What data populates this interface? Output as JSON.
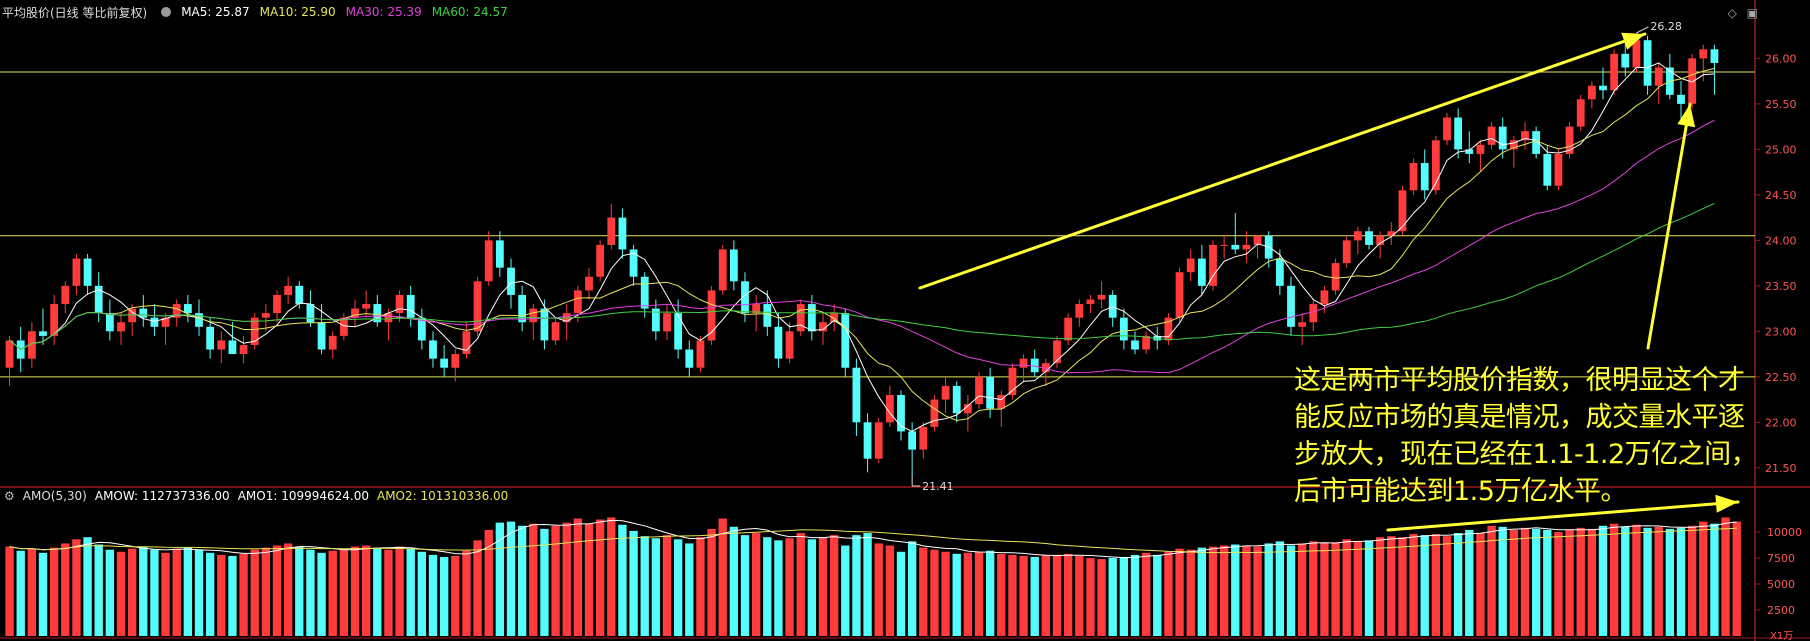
{
  "header": {
    "title": "平均股价(日线 等比前复权)",
    "ma5": "MA5: 25.87",
    "ma10": "MA10: 25.90",
    "ma30": "MA30: 25.39",
    "ma60": "MA60: 24.57"
  },
  "volume_header": {
    "title": "AMO(5,30)",
    "amow": "AMOW: 112737336.00",
    "amo1": "AMO1: 109994624.00",
    "amo2": "AMO2: 101310336.00"
  },
  "price_axis": [
    "26.00",
    "25.50",
    "25.00",
    "24.50",
    "24.00",
    "23.50",
    "23.00",
    "22.50",
    "22.00",
    "21.50"
  ],
  "volume_axis": [
    "10000",
    "7500",
    "5000",
    "2500"
  ],
  "volume_unit": "X1万",
  "price_high_label": "26.28",
  "price_low_label": "21.41",
  "annotation": [
    "这是两市平均股价指数，很明显这个才",
    "能反应市场的真是情况，成交量水平逐",
    "步放大，现在已经在1.1-1.2万亿之间，",
    "后市可能达到1.5万亿水平。"
  ],
  "colors": {
    "up": "#ff3b3b",
    "down": "#54fcfc",
    "ma5": "#ffffff",
    "ma10": "#e6e65a",
    "ma30": "#e040e0",
    "ma60": "#40d040",
    "annotation": "#ffff33",
    "frame": "#9b1b1b",
    "level_line": "#e6e65a"
  },
  "chart_data": [
    {
      "type": "candlestick",
      "title": "平均股价(日线 等比前复权)",
      "ylim": [
        21.3,
        26.4
      ],
      "y_ticks": [
        21.5,
        22.0,
        22.5,
        23.0,
        23.5,
        24.0,
        24.5,
        25.0,
        25.5,
        26.0
      ],
      "horizontal_levels": [
        25.85,
        24.05,
        22.5
      ],
      "high_label": 26.28,
      "low_label": 21.41,
      "ma_last": {
        "MA5": 25.87,
        "MA10": 25.9,
        "MA30": 25.39,
        "MA60": 24.57
      },
      "ohlc": [
        [
          22.6,
          22.95,
          22.4,
          22.9
        ],
        [
          22.9,
          23.05,
          22.55,
          22.7
        ],
        [
          22.7,
          23.1,
          22.6,
          23.0
        ],
        [
          23.0,
          23.25,
          22.85,
          22.95
        ],
        [
          22.95,
          23.4,
          22.85,
          23.3
        ],
        [
          23.3,
          23.55,
          23.2,
          23.5
        ],
        [
          23.5,
          23.85,
          23.4,
          23.8
        ],
        [
          23.8,
          23.85,
          23.4,
          23.5
        ],
        [
          23.5,
          23.65,
          23.1,
          23.2
        ],
        [
          23.2,
          23.35,
          22.9,
          23.0
        ],
        [
          23.0,
          23.2,
          22.85,
          23.1
        ],
        [
          23.1,
          23.3,
          22.95,
          23.25
        ],
        [
          23.25,
          23.4,
          23.05,
          23.15
        ],
        [
          23.15,
          23.3,
          22.95,
          23.05
        ],
        [
          23.05,
          23.2,
          22.85,
          23.15
        ],
        [
          23.15,
          23.35,
          23.05,
          23.3
        ],
        [
          23.3,
          23.4,
          23.1,
          23.2
        ],
        [
          23.2,
          23.35,
          22.95,
          23.05
        ],
        [
          23.05,
          23.15,
          22.7,
          22.8
        ],
        [
          22.8,
          23.0,
          22.65,
          22.9
        ],
        [
          22.9,
          23.1,
          22.75,
          22.75
        ],
        [
          22.75,
          22.95,
          22.65,
          22.85
        ],
        [
          22.85,
          23.2,
          22.8,
          23.15
        ],
        [
          23.15,
          23.3,
          23.0,
          23.2
        ],
        [
          23.2,
          23.45,
          23.1,
          23.4
        ],
        [
          23.4,
          23.6,
          23.3,
          23.5
        ],
        [
          23.5,
          23.55,
          23.25,
          23.3
        ],
        [
          23.3,
          23.45,
          23.05,
          23.1
        ],
        [
          23.1,
          23.3,
          22.75,
          22.8
        ],
        [
          22.8,
          23.0,
          22.7,
          22.95
        ],
        [
          22.95,
          23.2,
          22.9,
          23.15
        ],
        [
          23.15,
          23.35,
          23.05,
          23.25
        ],
        [
          23.25,
          23.45,
          23.15,
          23.3
        ],
        [
          23.3,
          23.4,
          23.05,
          23.1
        ],
        [
          23.1,
          23.25,
          22.9,
          23.2
        ],
        [
          23.2,
          23.45,
          23.1,
          23.4
        ],
        [
          23.4,
          23.5,
          23.05,
          23.15
        ],
        [
          23.15,
          23.25,
          22.8,
          22.9
        ],
        [
          22.9,
          23.0,
          22.6,
          22.7
        ],
        [
          22.7,
          22.85,
          22.5,
          22.6
        ],
        [
          22.6,
          22.8,
          22.45,
          22.75
        ],
        [
          22.75,
          23.1,
          22.7,
          23.0
        ],
        [
          23.0,
          23.6,
          22.95,
          23.55
        ],
        [
          23.55,
          24.1,
          23.5,
          24.0
        ],
        [
          24.0,
          24.1,
          23.6,
          23.7
        ],
        [
          23.7,
          23.8,
          23.25,
          23.4
        ],
        [
          23.4,
          23.5,
          23.0,
          23.1
        ],
        [
          23.1,
          23.3,
          22.9,
          23.25
        ],
        [
          23.25,
          23.35,
          22.8,
          22.9
        ],
        [
          22.9,
          23.15,
          22.85,
          23.1
        ],
        [
          23.1,
          23.3,
          22.9,
          23.2
        ],
        [
          23.2,
          23.5,
          23.1,
          23.45
        ],
        [
          23.45,
          23.7,
          23.35,
          23.6
        ],
        [
          23.6,
          24.0,
          23.55,
          23.95
        ],
        [
          23.95,
          24.4,
          23.9,
          24.25
        ],
        [
          24.25,
          24.35,
          23.8,
          23.9
        ],
        [
          23.9,
          23.95,
          23.5,
          23.6
        ],
        [
          23.6,
          23.65,
          23.15,
          23.25
        ],
        [
          23.25,
          23.35,
          22.9,
          23.0
        ],
        [
          23.0,
          23.3,
          22.9,
          23.2
        ],
        [
          23.2,
          23.35,
          22.7,
          22.8
        ],
        [
          22.8,
          22.9,
          22.5,
          22.6
        ],
        [
          22.6,
          22.95,
          22.55,
          22.9
        ],
        [
          22.9,
          23.5,
          22.85,
          23.45
        ],
        [
          23.45,
          23.95,
          23.4,
          23.9
        ],
        [
          23.9,
          24.0,
          23.45,
          23.55
        ],
        [
          23.55,
          23.65,
          23.1,
          23.2
        ],
        [
          23.2,
          23.4,
          23.0,
          23.3
        ],
        [
          23.3,
          23.45,
          22.95,
          23.05
        ],
        [
          23.05,
          23.2,
          22.6,
          22.7
        ],
        [
          22.7,
          23.1,
          22.65,
          23.0
        ],
        [
          23.0,
          23.35,
          22.95,
          23.3
        ],
        [
          23.3,
          23.4,
          22.9,
          23.0
        ],
        [
          23.0,
          23.2,
          22.85,
          23.1
        ],
        [
          23.1,
          23.3,
          23.0,
          23.2
        ],
        [
          23.2,
          23.25,
          22.5,
          22.6
        ],
        [
          22.6,
          22.7,
          21.85,
          22.0
        ],
        [
          22.0,
          22.1,
          21.45,
          21.6
        ],
        [
          21.6,
          22.05,
          21.55,
          22.0
        ],
        [
          22.0,
          22.4,
          21.95,
          22.3
        ],
        [
          22.3,
          22.35,
          21.8,
          21.9
        ],
        [
          21.9,
          22.0,
          21.41,
          21.7
        ],
        [
          21.7,
          22.0,
          21.6,
          21.95
        ],
        [
          21.95,
          22.3,
          21.9,
          22.25
        ],
        [
          22.25,
          22.5,
          22.1,
          22.4
        ],
        [
          22.4,
          22.45,
          22.0,
          22.1
        ],
        [
          22.1,
          22.3,
          21.9,
          22.2
        ],
        [
          22.2,
          22.55,
          22.15,
          22.5
        ],
        [
          22.5,
          22.6,
          22.05,
          22.15
        ],
        [
          22.15,
          22.35,
          21.95,
          22.3
        ],
        [
          22.3,
          22.65,
          22.25,
          22.6
        ],
        [
          22.6,
          22.75,
          22.45,
          22.7
        ],
        [
          22.7,
          22.8,
          22.5,
          22.55
        ],
        [
          22.55,
          22.7,
          22.4,
          22.65
        ],
        [
          22.65,
          22.95,
          22.6,
          22.9
        ],
        [
          22.9,
          23.2,
          22.85,
          23.15
        ],
        [
          23.15,
          23.35,
          23.05,
          23.3
        ],
        [
          23.3,
          23.4,
          23.2,
          23.35
        ],
        [
          23.35,
          23.55,
          23.25,
          23.4
        ],
        [
          23.4,
          23.45,
          23.05,
          23.15
        ],
        [
          23.15,
          23.25,
          22.8,
          22.9
        ],
        [
          22.9,
          23.0,
          22.75,
          22.8
        ],
        [
          22.8,
          23.0,
          22.75,
          22.95
        ],
        [
          22.95,
          23.05,
          22.8,
          22.9
        ],
        [
          22.9,
          23.2,
          22.85,
          23.15
        ],
        [
          23.15,
          23.7,
          23.1,
          23.65
        ],
        [
          23.65,
          23.9,
          23.55,
          23.8
        ],
        [
          23.8,
          23.95,
          23.4,
          23.5
        ],
        [
          23.5,
          24.0,
          23.45,
          23.95
        ],
        [
          23.95,
          24.05,
          23.8,
          23.95
        ],
        [
          23.95,
          24.3,
          23.85,
          23.9
        ],
        [
          23.9,
          24.1,
          23.75,
          23.95
        ],
        [
          23.95,
          24.05,
          23.8,
          24.05
        ],
        [
          24.05,
          24.1,
          23.7,
          23.8
        ],
        [
          23.8,
          23.9,
          23.4,
          23.5
        ],
        [
          23.5,
          23.6,
          22.95,
          23.05
        ],
        [
          23.05,
          23.2,
          22.85,
          23.1
        ],
        [
          23.1,
          23.35,
          23.0,
          23.3
        ],
        [
          23.3,
          23.5,
          23.2,
          23.45
        ],
        [
          23.45,
          23.8,
          23.4,
          23.75
        ],
        [
          23.75,
          24.05,
          23.7,
          24.0
        ],
        [
          24.0,
          24.15,
          23.85,
          24.1
        ],
        [
          24.1,
          24.15,
          23.9,
          23.95
        ],
        [
          23.95,
          24.1,
          23.8,
          24.05
        ],
        [
          24.05,
          24.2,
          23.95,
          24.1
        ],
        [
          24.1,
          24.6,
          24.05,
          24.55
        ],
        [
          24.55,
          24.9,
          24.5,
          24.85
        ],
        [
          24.85,
          25.0,
          24.45,
          24.55
        ],
        [
          24.55,
          25.15,
          24.5,
          25.1
        ],
        [
          25.1,
          25.4,
          25.05,
          25.35
        ],
        [
          25.35,
          25.45,
          24.9,
          25.0
        ],
        [
          25.0,
          25.2,
          24.85,
          24.95
        ],
        [
          24.95,
          25.1,
          24.75,
          25.05
        ],
        [
          25.05,
          25.3,
          25.0,
          25.25
        ],
        [
          25.25,
          25.35,
          24.9,
          25.0
        ],
        [
          25.0,
          25.15,
          24.8,
          25.1
        ],
        [
          25.1,
          25.3,
          25.0,
          25.2
        ],
        [
          25.2,
          25.25,
          24.9,
          24.95
        ],
        [
          24.95,
          25.05,
          24.55,
          24.6
        ],
        [
          24.6,
          25.0,
          24.55,
          24.95
        ],
        [
          24.95,
          25.3,
          24.9,
          25.25
        ],
        [
          25.25,
          25.6,
          25.2,
          25.55
        ],
        [
          25.55,
          25.75,
          25.45,
          25.7
        ],
        [
          25.7,
          25.9,
          25.55,
          25.65
        ],
        [
          25.65,
          26.1,
          25.6,
          26.05
        ],
        [
          26.05,
          26.2,
          25.8,
          25.9
        ],
        [
          25.9,
          26.28,
          25.85,
          26.2
        ],
        [
          26.2,
          26.25,
          25.6,
          25.7
        ],
        [
          25.7,
          25.95,
          25.5,
          25.9
        ],
        [
          25.9,
          26.05,
          25.55,
          25.6
        ],
        [
          25.6,
          25.75,
          25.3,
          25.5
        ],
        [
          25.5,
          26.05,
          25.45,
          26.0
        ],
        [
          26.0,
          26.15,
          25.75,
          26.1
        ],
        [
          26.1,
          26.15,
          25.6,
          25.95
        ]
      ]
    },
    {
      "type": "bar",
      "title": "AMO(5,30)",
      "ylim": [
        0,
        12500
      ],
      "y_ticks": [
        2500,
        5000,
        7500,
        10000
      ],
      "unit": "X1万",
      "series_last": {
        "AMOW": 112737336.0,
        "AMO1": 109994624.0,
        "AMO2": 101310336.0
      },
      "values": [
        8600,
        8200,
        8400,
        8000,
        8500,
        8900,
        9300,
        9500,
        8800,
        8300,
        8100,
        8400,
        8600,
        8300,
        8000,
        8400,
        8500,
        8300,
        8000,
        7800,
        7700,
        7900,
        8300,
        8500,
        8700,
        8900,
        8600,
        8300,
        8000,
        8200,
        8400,
        8600,
        8700,
        8400,
        8300,
        8600,
        8400,
        8100,
        7800,
        7600,
        7700,
        8200,
        9200,
        10200,
        10900,
        11000,
        10600,
        10800,
        10300,
        10600,
        10900,
        11300,
        10800,
        11200,
        11400,
        10700,
        10100,
        9600,
        9400,
        9700,
        9300,
        8900,
        9500,
        10300,
        11300,
        10500,
        9700,
        9900,
        9500,
        9200,
        9400,
        9900,
        9300,
        9500,
        9700,
        8700,
        9700,
        9900,
        8900,
        8700,
        8100,
        9100,
        8500,
        8300,
        8100,
        7900,
        8000,
        8100,
        8200,
        7900,
        7800,
        7700,
        7600,
        7800,
        7800,
        7900,
        7700,
        7500,
        7400,
        7500,
        7600,
        7800,
        8000,
        7800,
        8100,
        8400,
        8300,
        8500,
        8600,
        8700,
        8800,
        8700,
        8600,
        8900,
        9100,
        8700,
        8900,
        9100,
        9000,
        9000,
        9300,
        9100,
        9200,
        9500,
        9600,
        9500,
        9800,
        9700,
        9800,
        9600,
        9900,
        10200,
        9900,
        10600,
        10500,
        10200,
        10400,
        10300,
        10200,
        10000,
        10200,
        10400,
        10300,
        10600,
        10800,
        10500,
        10700,
        10400,
        10500,
        10300,
        10400,
        10600,
        11000,
        10800,
        11400,
        11000
      ]
    }
  ]
}
